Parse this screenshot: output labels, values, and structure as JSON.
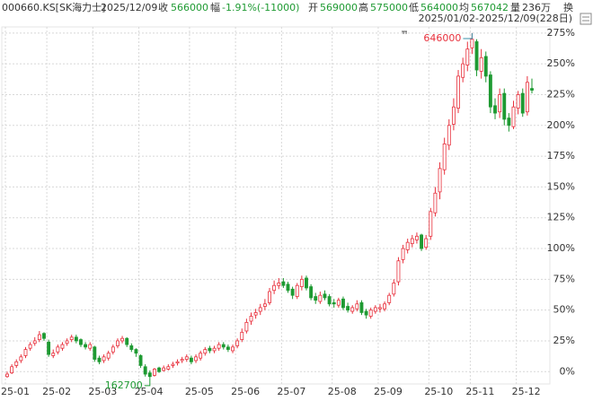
{
  "header": {
    "symbol": "000660.KS[SK海力士]",
    "date": "2025/12/09",
    "close_label": "收",
    "close": "566000",
    "change_label": "幅",
    "change": "-1.91%(-11000)",
    "open_label": "开",
    "open": "569000",
    "high_label": "高",
    "high": "575000",
    "low_label": "低",
    "low": "564000",
    "avg_label": "均",
    "avg": "567042",
    "vol_label": "量",
    "vol": "236万",
    "turnover_label": "换",
    "range": "2025/01/02-2025/12/09(228日)"
  },
  "chart_data": {
    "type": "candlestick",
    "categories": [
      "25-01",
      null,
      null,
      null,
      null,
      null,
      null,
      null,
      null,
      "25-02",
      null,
      null,
      null,
      null,
      null,
      null,
      null,
      null,
      null,
      "25-03",
      null,
      null,
      null,
      null,
      null,
      null,
      null,
      null,
      null,
      "25-04",
      null,
      null,
      null,
      null,
      null,
      null,
      null,
      null,
      null,
      null,
      "25-05",
      null,
      null,
      null,
      null,
      null,
      null,
      null,
      null,
      null,
      "25-06",
      null,
      null,
      null,
      null,
      null,
      null,
      null,
      null,
      null,
      "25-07",
      null,
      null,
      null,
      null,
      null,
      null,
      null,
      null,
      null,
      null,
      "25-08",
      null,
      null,
      null,
      null,
      null,
      null,
      null,
      null,
      null,
      "25-09",
      null,
      null,
      null,
      null,
      null,
      null,
      null,
      null,
      null,
      null,
      "25-10",
      null,
      null,
      null,
      null,
      null,
      null,
      null,
      null,
      "25-11",
      null,
      null,
      null,
      null,
      null,
      null,
      null,
      null,
      null,
      "25-12",
      null,
      null,
      null
    ],
    "open": [
      -4,
      -1,
      5,
      9,
      13,
      19,
      23,
      26,
      31,
      24,
      13,
      16,
      19,
      23,
      26,
      28,
      26,
      22,
      19,
      20,
      11,
      9,
      11,
      16,
      21,
      25,
      27,
      21,
      18,
      13,
      4,
      -1,
      -3,
      3,
      1,
      2,
      5,
      7,
      9,
      10,
      11,
      9,
      11,
      15,
      19,
      17,
      19,
      22,
      20,
      17,
      21,
      26,
      33,
      41,
      46,
      49,
      53,
      56,
      66,
      70,
      73,
      71,
      67,
      61,
      69,
      76,
      69,
      61,
      57,
      63,
      61,
      56,
      54,
      59,
      53,
      49,
      51,
      56,
      49,
      45,
      49,
      51,
      51,
      56,
      63,
      73,
      91,
      99,
      104,
      107,
      111,
      101,
      110,
      129,
      146,
      164,
      184,
      201,
      214,
      239,
      249,
      263,
      268,
      244,
      256,
      241,
      216,
      211,
      226,
      206,
      199,
      214,
      226,
      211,
      230
    ],
    "high": [
      0,
      6,
      10,
      14,
      20,
      24,
      28,
      33,
      32,
      26,
      18,
      22,
      24,
      27,
      30,
      30,
      27,
      24,
      24,
      21,
      13,
      14,
      17,
      22,
      27,
      29,
      28,
      23,
      19,
      14,
      6,
      1,
      3,
      4,
      5,
      6,
      8,
      10,
      12,
      14,
      13,
      14,
      17,
      20,
      21,
      21,
      24,
      24,
      22,
      22,
      27,
      35,
      43,
      48,
      51,
      55,
      59,
      68,
      74,
      76,
      76,
      73,
      69,
      72,
      78,
      78,
      71,
      64,
      65,
      66,
      63,
      59,
      60,
      61,
      56,
      54,
      58,
      58,
      51,
      52,
      54,
      55,
      57,
      64,
      75,
      93,
      103,
      108,
      111,
      113,
      112,
      111,
      133,
      150,
      170,
      190,
      205,
      222,
      245,
      255,
      268,
      275,
      270,
      262,
      260,
      244,
      222,
      230,
      230,
      210,
      220,
      228,
      230,
      240,
      238
    ],
    "low": [
      -5,
      -2,
      3,
      7,
      11,
      17,
      21,
      24,
      25,
      12,
      11,
      14,
      17,
      21,
      24,
      23,
      20,
      18,
      17,
      8,
      6,
      7,
      9,
      14,
      19,
      23,
      20,
      16,
      12,
      3,
      -4,
      -5.5,
      -4,
      -1,
      0,
      1,
      3,
      5,
      7,
      8,
      6,
      7,
      9,
      13,
      15,
      15,
      17,
      18,
      16,
      15,
      19,
      24,
      31,
      38,
      43,
      46,
      50,
      54,
      63,
      67,
      68,
      64,
      59,
      59,
      66,
      66,
      58,
      55,
      55,
      58,
      53,
      52,
      52,
      50,
      48,
      47,
      49,
      46,
      43,
      43,
      47,
      48,
      49,
      54,
      61,
      70,
      88,
      96,
      101,
      104,
      98,
      99,
      107,
      126,
      140,
      160,
      180,
      196,
      210,
      235,
      244,
      258,
      240,
      238,
      235,
      210,
      205,
      206,
      200,
      195,
      197,
      209,
      207,
      208,
      226
    ],
    "close": [
      -2,
      4,
      8,
      12,
      18,
      22,
      25,
      30,
      27,
      14,
      15,
      20,
      22,
      25,
      28,
      25,
      22,
      20,
      22,
      10,
      8,
      12,
      15,
      20,
      25,
      27,
      22,
      18,
      15,
      5,
      -2,
      -4,
      2,
      0,
      3,
      4,
      6,
      8,
      10,
      12,
      8,
      12,
      15,
      18,
      17,
      19,
      22,
      20,
      18,
      20,
      25,
      32,
      40,
      45,
      48,
      52,
      55,
      65,
      70,
      72,
      70,
      66,
      62,
      70,
      75,
      68,
      60,
      58,
      62,
      60,
      55,
      55,
      58,
      52,
      50,
      52,
      55,
      48,
      46,
      50,
      52,
      52,
      55,
      62,
      72,
      90,
      100,
      105,
      108,
      110,
      100,
      108,
      130,
      145,
      165,
      185,
      200,
      215,
      240,
      250,
      262,
      270,
      245,
      255,
      240,
      215,
      210,
      225,
      205,
      200,
      215,
      225,
      210,
      235,
      228.6
    ],
    "up_color": "#e8303c",
    "down_color": "#1e9a32",
    "annotations": {
      "max_label": "646000",
      "min_label": "162700"
    },
    "ylim": [
      -10,
      280
    ],
    "yticks": [
      {
        "value": 0,
        "label": "0%"
      },
      {
        "value": 25,
        "label": "25%"
      },
      {
        "value": 50,
        "label": "50%"
      },
      {
        "value": 75,
        "label": "75%"
      },
      {
        "value": 100,
        "label": "100%"
      },
      {
        "value": 125,
        "label": "125%"
      },
      {
        "value": 150,
        "label": "150%"
      },
      {
        "value": 175,
        "label": "175%"
      },
      {
        "value": 200,
        "label": "200%"
      },
      {
        "value": 225,
        "label": "225%"
      },
      {
        "value": 250,
        "label": "250%"
      },
      {
        "value": 275,
        "label": "275%"
      }
    ],
    "grid": true
  }
}
